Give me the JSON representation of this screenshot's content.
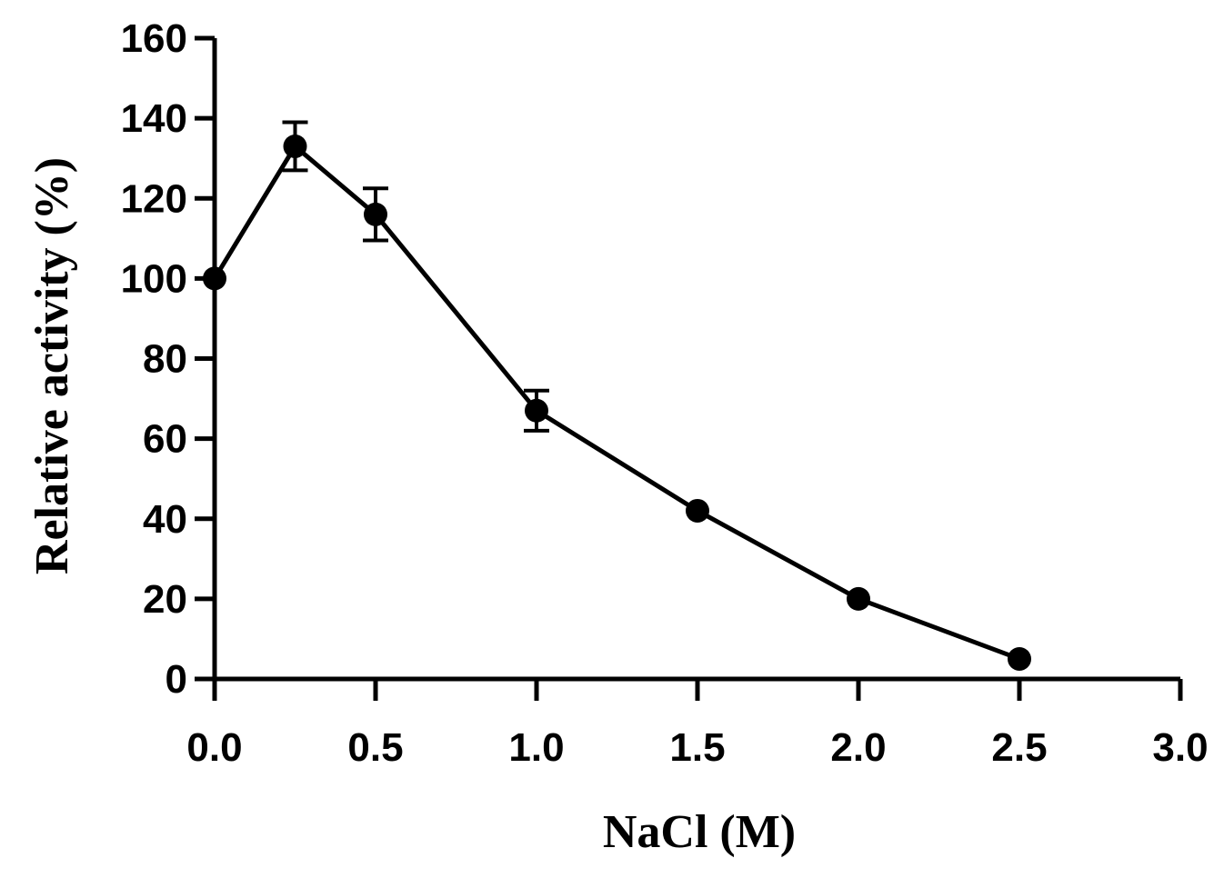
{
  "chart_data": {
    "type": "line",
    "title": "",
    "xlabel": "NaCl (M)",
    "ylabel": "Relative activity (%)",
    "xlim": [
      0,
      3.0
    ],
    "ylim": [
      0,
      160
    ],
    "x_ticks": [
      "0.0",
      "0.5",
      "1.0",
      "1.5",
      "2.0",
      "2.5",
      "3.0"
    ],
    "y_ticks": [
      "0",
      "20",
      "40",
      "60",
      "80",
      "100",
      "120",
      "140",
      "160"
    ],
    "grid": false,
    "legend": "none",
    "series": [
      {
        "x": [
          0,
          0.25,
          0.5,
          1.0,
          1.5,
          2.0,
          2.5
        ],
        "y": [
          100,
          133,
          116,
          67,
          42,
          20,
          5
        ],
        "error": [
          0,
          6,
          6.5,
          5,
          0,
          0,
          0
        ]
      }
    ],
    "colors": {
      "line": "#000000",
      "marker": "#000000"
    }
  }
}
